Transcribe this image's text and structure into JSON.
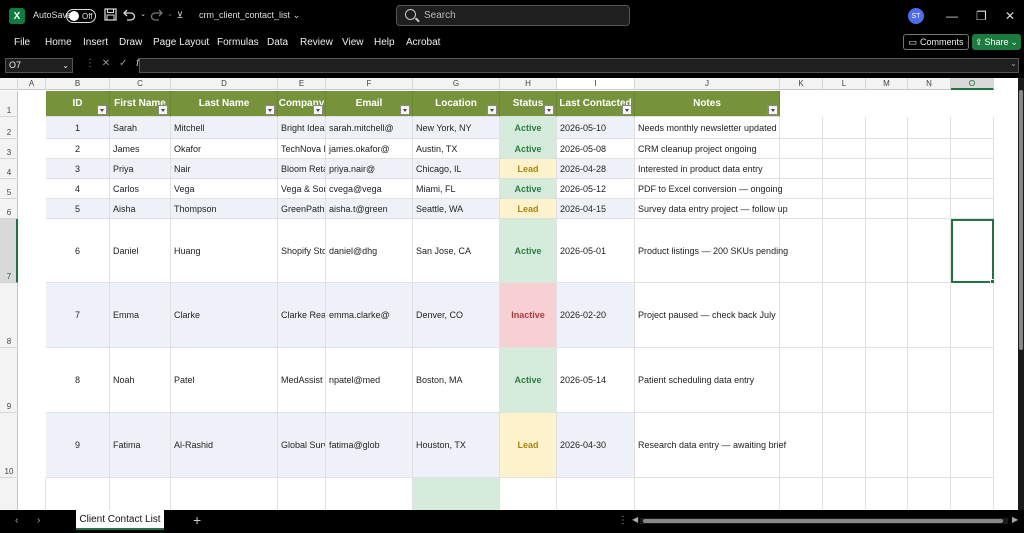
{
  "app": {
    "logo": "X",
    "autosave_label": "AutoSave",
    "autosave_state": "Off",
    "filename": "crm_client_contact_list",
    "search_placeholder": "Search",
    "avatar_initials": "ST"
  },
  "ribbon": {
    "tabs": [
      "File",
      "Home",
      "Insert",
      "Draw",
      "Page Layout",
      "Formulas",
      "Data",
      "Review",
      "View",
      "Help",
      "Acrobat"
    ],
    "comments_label": "Comments",
    "share_label": "Share"
  },
  "formula_bar": {
    "name_box": "O7",
    "fx": "fx",
    "value": ""
  },
  "columns": [
    "A",
    "B",
    "C",
    "D",
    "E",
    "F",
    "G",
    "H",
    "I",
    "J",
    "K",
    "L",
    "M",
    "N",
    "O"
  ],
  "row_numbers": [
    "1",
    "2",
    "3",
    "4",
    "5",
    "6",
    "7",
    "8",
    "9",
    "10"
  ],
  "table": {
    "headers": [
      "ID",
      "First Name",
      "Last Name",
      "Company",
      "Email",
      "Location",
      "Status",
      "Last Contacted",
      "Notes"
    ],
    "rows": [
      [
        "1",
        "Sarah",
        "Mitchell",
        "Bright Ideas Co.",
        "sarah.mitchell@",
        "New York, NY",
        "Active",
        "2026-05-10",
        "Needs monthly newsletter updated"
      ],
      [
        "2",
        "James",
        "Okafor",
        "TechNova Ltd.",
        "james.okafor@",
        "Austin, TX",
        "Active",
        "2026-05-08",
        "CRM cleanup project ongoing"
      ],
      [
        "3",
        "Priya",
        "Nair",
        "Bloom Retail",
        "priya.nair@",
        "Chicago, IL",
        "Lead",
        "2026-04-28",
        "Interested in product data entry"
      ],
      [
        "4",
        "Carlos",
        "Vega",
        "Vega & Sons Law",
        "cvega@vega",
        "Miami, FL",
        "Active",
        "2026-05-12",
        "PDF to Excel conversion — ongoing"
      ],
      [
        "5",
        "Aisha",
        "Thompson",
        "GreenPath NGO",
        "aisha.t@green",
        "Seattle, WA",
        "Lead",
        "2026-04-15",
        "Survey data entry project — follow up"
      ],
      [
        "6",
        "Daniel",
        "Huang",
        "Shopify Store — DH Goods",
        "daniel@dhg",
        "San Jose, CA",
        "Active",
        "2026-05-01",
        "Product listings — 200 SKUs pending"
      ],
      [
        "7",
        "Emma",
        "Clarke",
        "Clarke Real Estate",
        "emma.clarke@",
        "Denver, CO",
        "Inactive",
        "2026-02-20",
        "Project paused — check back July"
      ],
      [
        "8",
        "Noah",
        "Patel",
        "MedAssist Clinic",
        "npatel@med",
        "Boston, MA",
        "Active",
        "2026-05-14",
        "Patient scheduling data entry"
      ],
      [
        "9",
        "Fatima",
        "Al-Rashid",
        "Global Surveys Inc.",
        "fatima@glob",
        "Houston, TX",
        "Lead",
        "2026-04-30",
        "Research data entry — awaiting brief"
      ]
    ]
  },
  "sheet_tabs": [
    "Client Contact List"
  ],
  "colors": {
    "header_green": "#76933c",
    "active_bg": "#d5ecdc",
    "lead_bg": "#fdf2cc",
    "inactive_bg": "#f6d0d3",
    "excel_green": "#217346"
  }
}
